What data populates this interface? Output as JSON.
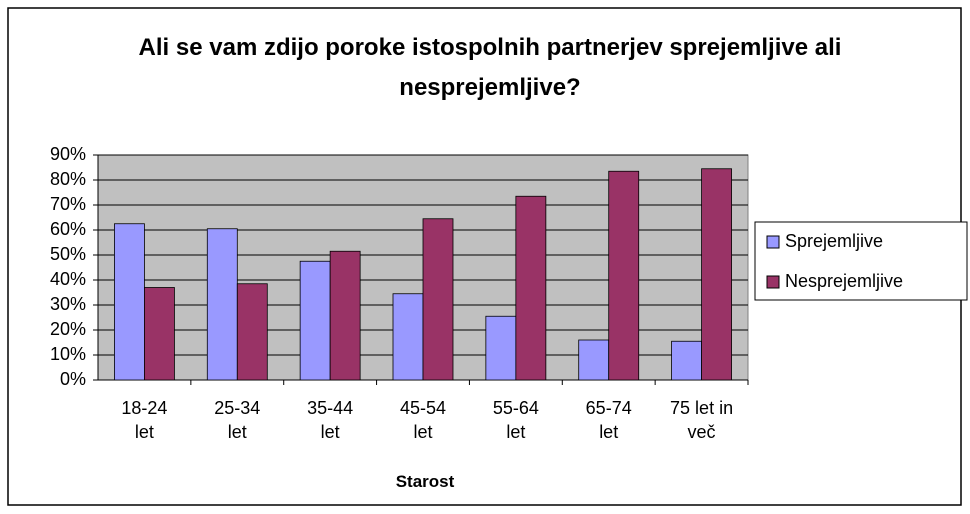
{
  "chart_data": {
    "type": "bar",
    "title": "Ali se vam zdijo poroke istospolnih partnerjev sprejemljive ali nesprejemljive?",
    "x_label": "Starost",
    "categories": [
      "18-24 let",
      "25-34 let",
      "35-44 let",
      "45-54 let",
      "55-64 let",
      "65-74 let",
      "75 let in več"
    ],
    "series": [
      {
        "name": "Sprejemljive",
        "color": "#9999ff",
        "values": [
          62.5,
          60.5,
          47.5,
          34.5,
          25.5,
          16,
          15.5
        ]
      },
      {
        "name": "Nesprejemljive",
        "color": "#993366",
        "values": [
          37,
          38.5,
          51.5,
          64.5,
          73.5,
          83.5,
          84.5
        ]
      }
    ],
    "ylim": [
      0,
      90
    ],
    "yticks": [
      {
        "value": 0,
        "label": "0%"
      },
      {
        "value": 10,
        "label": "10%"
      },
      {
        "value": 20,
        "label": "20%"
      },
      {
        "value": 30,
        "label": "30%"
      },
      {
        "value": 40,
        "label": "40%"
      },
      {
        "value": 50,
        "label": "50%"
      },
      {
        "value": 60,
        "label": "60%"
      },
      {
        "value": 70,
        "label": "70%"
      },
      {
        "value": 80,
        "label": "80%"
      },
      {
        "value": 90,
        "label": "90%"
      }
    ],
    "grid": true,
    "legend": "right"
  }
}
